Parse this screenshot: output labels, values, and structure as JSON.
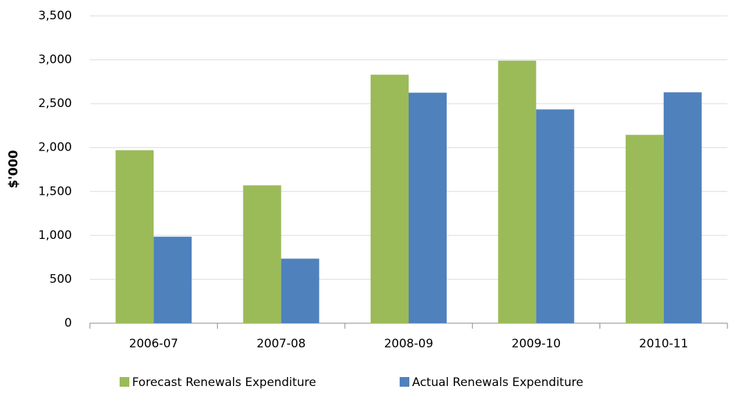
{
  "chart_data": {
    "type": "bar",
    "ylabel": "$'000",
    "categories": [
      "2006-07",
      "2007-08",
      "2008-09",
      "2009-10",
      "2010-11"
    ],
    "series": [
      {
        "name": "Forecast Renewals Expenditure",
        "color": "#9bbb59",
        "values": [
          1970,
          1570,
          2830,
          2990,
          2145
        ]
      },
      {
        "name": "Actual Renewals Expenditure",
        "color": "#4f81bd",
        "values": [
          985,
          735,
          2625,
          2435,
          2630
        ]
      }
    ],
    "ylim": [
      0,
      3500
    ],
    "yticks": [
      0,
      500,
      {
        "value": 1000,
        "label": "1,000"
      },
      {
        "value": 1500,
        "label": "1,500"
      },
      {
        "value": 2000,
        "label": "2,000"
      },
      {
        "value": 2500,
        "label": "2,500"
      },
      {
        "value": 3000,
        "label": "3,000"
      },
      {
        "value": 3500,
        "label": "3,500"
      }
    ],
    "grid": true,
    "legend": "bottom"
  }
}
